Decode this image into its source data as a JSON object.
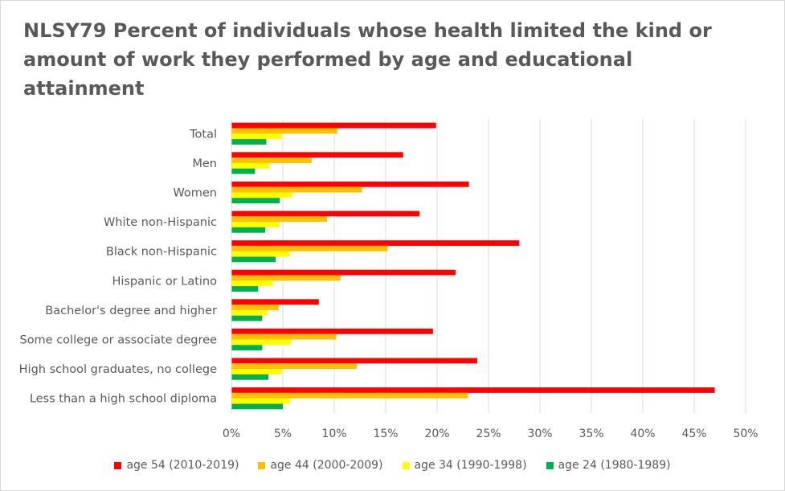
{
  "chart_data": {
    "type": "bar",
    "orientation": "horizontal",
    "title": "NLSY79 Percent of individuals whose health limited the kind or amount of work they performed by age and educational attainment",
    "categories": [
      "Total",
      "Men",
      "Women",
      "White non-Hispanic",
      "Black non-Hispanic",
      "Hispanic or Latino",
      "Bachelor's degree and higher",
      "Some college or associate degree",
      "High school graduates, no college",
      "Less than a high school diploma"
    ],
    "series": [
      {
        "name": "age 54 (2010-2019)",
        "color": "#ff0000",
        "values": [
          19.9,
          16.7,
          23.1,
          18.3,
          28.0,
          21.8,
          8.5,
          19.6,
          23.9,
          47.0
        ]
      },
      {
        "name": "age 44 (2000-2009)",
        "color": "#ffc000",
        "values": [
          10.3,
          7.8,
          12.7,
          9.3,
          15.2,
          10.6,
          4.6,
          10.2,
          12.2,
          23.0
        ]
      },
      {
        "name": "age 34 (1990-1998)",
        "color": "#ffff00",
        "values": [
          4.9,
          3.7,
          5.9,
          4.7,
          5.7,
          4.0,
          3.5,
          5.8,
          4.9,
          5.7
        ]
      },
      {
        "name": "age 24 (1980-1989)",
        "color": "#00b050",
        "values": [
          3.4,
          2.3,
          4.7,
          3.3,
          4.3,
          2.6,
          3.0,
          3.0,
          3.6,
          5.0
        ]
      }
    ],
    "xlim": [
      0,
      50
    ],
    "x_ticks": [
      "0%",
      "5%",
      "10%",
      "15%",
      "20%",
      "25%",
      "30%",
      "35%",
      "40%",
      "45%",
      "50%"
    ],
    "grid": true,
    "legend": "bottom",
    "xlabel": "",
    "ylabel": ""
  }
}
